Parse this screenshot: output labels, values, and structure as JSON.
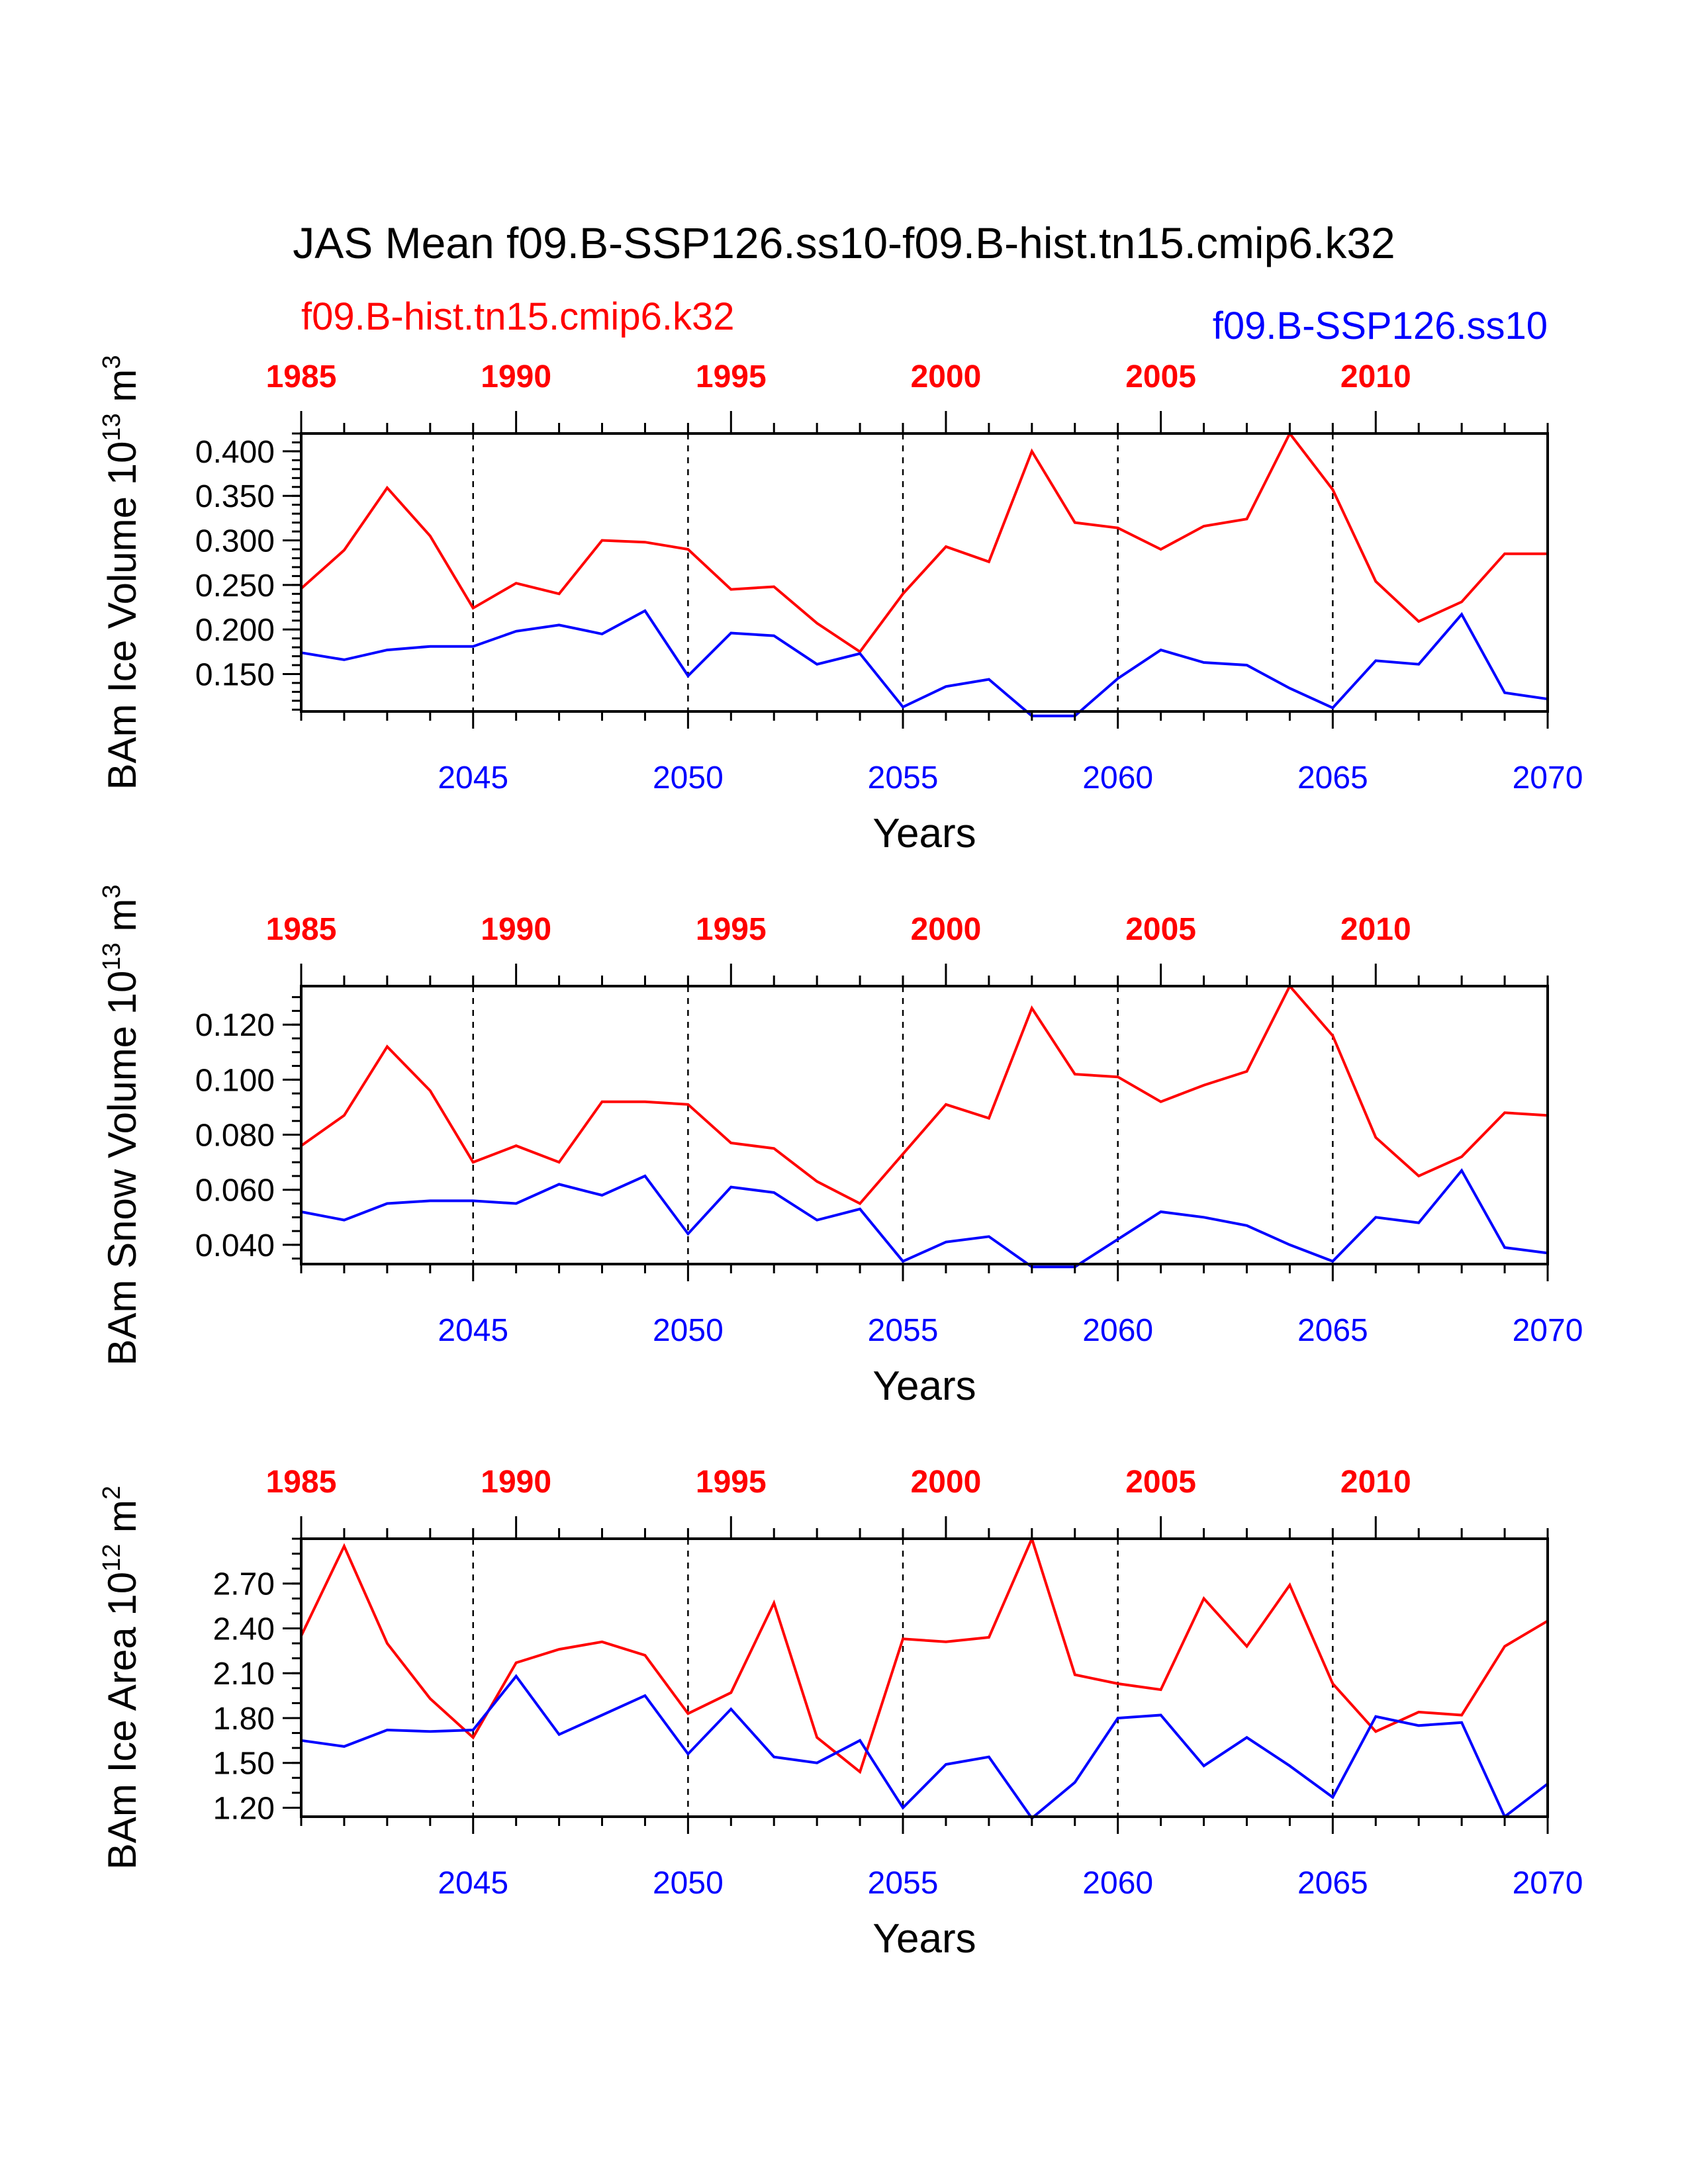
{
  "title": "JAS Mean f09.B-SSP126.ss10-f09.B-hist.tn15.cmip6.k32",
  "legend": {
    "left_label": "f09.B-hist.tn15.cmip6.k32",
    "right_label": "f09.B-SSP126.ss10"
  },
  "colors": {
    "hist": "#ff0000",
    "ssp": "#0000ff",
    "axis": "#000000"
  },
  "chart_data": [
    {
      "type": "line",
      "ylabel": "BAm Ice Volume 10",
      "ylabel_exp": "13",
      "ylabel_unit": " m",
      "ylabel_unit_exp": "3",
      "xlabel": "Years",
      "ylim": [
        0.108,
        0.42
      ],
      "yticks": [
        0.15,
        0.2,
        0.25,
        0.3,
        0.35,
        0.4
      ],
      "yticklabels": [
        "0.150",
        "0.200",
        "0.250",
        "0.300",
        "0.350",
        "0.400"
      ],
      "yminor": 0.01,
      "xlim": [
        2041,
        2070
      ],
      "bottom_ticks": [
        2045,
        2050,
        2055,
        2060,
        2065,
        2070
      ],
      "bottom_ticklabels": [
        "2045",
        "2050",
        "2055",
        "2060",
        "2065",
        "2070"
      ],
      "top_ticks_years": [
        1985,
        1990,
        1995,
        2000,
        2005,
        2010
      ],
      "top_ticklabels": [
        "1985",
        "1990",
        "1995",
        "2000",
        "2005",
        "2010"
      ],
      "top_offset_years": 56,
      "vlines": [
        2045,
        2050,
        2055,
        2060,
        2065
      ],
      "x": [
        2041,
        2042,
        2043,
        2044,
        2045,
        2046,
        2047,
        2048,
        2049,
        2050,
        2051,
        2052,
        2053,
        2054,
        2055,
        2056,
        2057,
        2058,
        2059,
        2060,
        2061,
        2062,
        2063,
        2064,
        2065,
        2066,
        2067,
        2068,
        2069,
        2070
      ],
      "series": [
        {
          "name": "f09.B-hist.tn15.cmip6.k32",
          "color": "#ff0000",
          "values": [
            0.246,
            0.289,
            0.359,
            0.305,
            0.224,
            0.252,
            0.24,
            0.3,
            0.298,
            0.29,
            0.245,
            0.248,
            0.207,
            0.175,
            0.24,
            0.293,
            0.276,
            0.4,
            0.32,
            0.314,
            0.29,
            0.316,
            0.324,
            0.42,
            0.357,
            0.254,
            0.209,
            0.231,
            0.285,
            0.285
          ]
        },
        {
          "name": "f09.B-SSP126.ss10",
          "color": "#0000ff",
          "values": [
            0.174,
            0.166,
            0.177,
            0.181,
            0.181,
            0.198,
            0.205,
            0.195,
            0.221,
            0.148,
            0.196,
            0.193,
            0.161,
            0.173,
            0.113,
            0.136,
            0.144,
            0.103,
            0.103,
            0.145,
            0.177,
            0.163,
            0.16,
            0.134,
            0.112,
            0.165,
            0.161,
            0.217,
            0.129,
            0.122
          ]
        }
      ]
    },
    {
      "type": "line",
      "ylabel": "BAm Snow Volume 10",
      "ylabel_exp": "13",
      "ylabel_unit": " m",
      "ylabel_unit_exp": "3",
      "xlabel": "Years",
      "ylim": [
        0.033,
        0.134
      ],
      "yticks": [
        0.04,
        0.06,
        0.08,
        0.1,
        0.12
      ],
      "yticklabels": [
        "0.040",
        "0.060",
        "0.080",
        "0.100",
        "0.120"
      ],
      "yminor": 0.005,
      "xlim": [
        2041,
        2070
      ],
      "bottom_ticks": [
        2045,
        2050,
        2055,
        2060,
        2065,
        2070
      ],
      "bottom_ticklabels": [
        "2045",
        "2050",
        "2055",
        "2060",
        "2065",
        "2070"
      ],
      "top_ticks_years": [
        1985,
        1990,
        1995,
        2000,
        2005,
        2010
      ],
      "top_ticklabels": [
        "1985",
        "1990",
        "1995",
        "2000",
        "2005",
        "2010"
      ],
      "top_offset_years": 56,
      "vlines": [
        2045,
        2050,
        2055,
        2060,
        2065
      ],
      "x": [
        2041,
        2042,
        2043,
        2044,
        2045,
        2046,
        2047,
        2048,
        2049,
        2050,
        2051,
        2052,
        2053,
        2054,
        2055,
        2056,
        2057,
        2058,
        2059,
        2060,
        2061,
        2062,
        2063,
        2064,
        2065,
        2066,
        2067,
        2068,
        2069,
        2070
      ],
      "series": [
        {
          "name": "f09.B-hist.tn15.cmip6.k32",
          "color": "#ff0000",
          "values": [
            0.076,
            0.087,
            0.112,
            0.096,
            0.07,
            0.076,
            0.07,
            0.092,
            0.092,
            0.091,
            0.077,
            0.075,
            0.063,
            0.055,
            0.073,
            0.091,
            0.086,
            0.126,
            0.102,
            0.101,
            0.092,
            0.098,
            0.103,
            0.134,
            0.116,
            0.079,
            0.065,
            0.072,
            0.088,
            0.087
          ]
        },
        {
          "name": "f09.B-SSP126.ss10",
          "color": "#0000ff",
          "values": [
            0.052,
            0.049,
            0.055,
            0.056,
            0.056,
            0.055,
            0.062,
            0.058,
            0.065,
            0.044,
            0.061,
            0.059,
            0.049,
            0.053,
            0.034,
            0.041,
            0.043,
            0.032,
            0.032,
            0.042,
            0.052,
            0.05,
            0.047,
            0.04,
            0.034,
            0.05,
            0.048,
            0.067,
            0.039,
            0.037
          ]
        }
      ]
    },
    {
      "type": "line",
      "ylabel": "BAm Ice Area 10",
      "ylabel_exp": "12",
      "ylabel_unit": " m",
      "ylabel_unit_exp": "2",
      "xlabel": "Years",
      "ylim": [
        1.14,
        3.0
      ],
      "yticks": [
        1.2,
        1.5,
        1.8,
        2.1,
        2.4,
        2.7
      ],
      "yticklabels": [
        "1.20",
        "1.50",
        "1.80",
        "2.10",
        "2.40",
        "2.70"
      ],
      "yminor": 0.1,
      "xlim": [
        2041,
        2070
      ],
      "bottom_ticks": [
        2045,
        2050,
        2055,
        2060,
        2065,
        2070
      ],
      "bottom_ticklabels": [
        "2045",
        "2050",
        "2055",
        "2060",
        "2065",
        "2070"
      ],
      "top_ticks_years": [
        1985,
        1990,
        1995,
        2000,
        2005,
        2010
      ],
      "top_ticklabels": [
        "1985",
        "1990",
        "1995",
        "2000",
        "2005",
        "2010"
      ],
      "top_offset_years": 56,
      "vlines": [
        2045,
        2050,
        2055,
        2060,
        2065
      ],
      "x": [
        2041,
        2042,
        2043,
        2044,
        2045,
        2046,
        2047,
        2048,
        2049,
        2050,
        2051,
        2052,
        2053,
        2054,
        2055,
        2056,
        2057,
        2058,
        2059,
        2060,
        2061,
        2062,
        2063,
        2064,
        2065,
        2066,
        2067,
        2068,
        2069,
        2070
      ],
      "series": [
        {
          "name": "f09.B-hist.tn15.cmip6.k32",
          "color": "#ff0000",
          "values": [
            2.35,
            2.95,
            2.3,
            1.93,
            1.67,
            2.17,
            2.26,
            2.31,
            2.22,
            1.83,
            1.97,
            2.57,
            1.67,
            1.44,
            2.33,
            2.31,
            2.34,
            3.0,
            2.09,
            2.03,
            1.99,
            2.6,
            2.28,
            2.69,
            2.03,
            1.71,
            1.84,
            1.82,
            2.28,
            2.45
          ]
        },
        {
          "name": "f09.B-SSP126.ss10",
          "color": "#0000ff",
          "values": [
            1.65,
            1.61,
            1.72,
            1.71,
            1.72,
            2.08,
            1.69,
            1.82,
            1.95,
            1.56,
            1.86,
            1.54,
            1.5,
            1.65,
            1.2,
            1.49,
            1.54,
            1.13,
            1.37,
            1.8,
            1.82,
            1.48,
            1.67,
            1.48,
            1.27,
            1.81,
            1.75,
            1.77,
            1.14,
            1.36
          ]
        }
      ]
    }
  ]
}
